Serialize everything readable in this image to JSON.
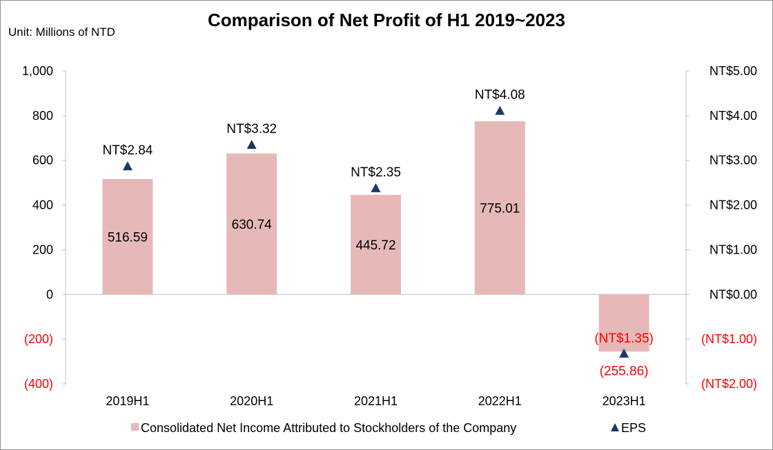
{
  "chart_data": {
    "type": "bar",
    "title": "Comparison of Net Profit of H1 2019~2023",
    "unit_label": "Unit: Millions of NTD",
    "categories": [
      "2019H1",
      "2020H1",
      "2021H1",
      "2022H1",
      "2023H1"
    ],
    "series": [
      {
        "name": "Consolidated Net Income Attributed to Stockholders of the Company",
        "type": "bar",
        "axis": "left",
        "color": "#e6b9b8",
        "values": [
          516.59,
          630.74,
          445.72,
          775.01,
          -255.86
        ],
        "labels": [
          "516.59",
          "630.74",
          "445.72",
          "775.01",
          "(255.86)"
        ]
      },
      {
        "name": "EPS",
        "type": "scatter",
        "marker": "triangle",
        "axis": "right",
        "color": "#1f3864",
        "values": [
          2.84,
          3.32,
          2.35,
          4.08,
          -1.35
        ],
        "labels": [
          "NT$2.84",
          "NT$3.32",
          "NT$2.35",
          "NT$4.08",
          "(NT$1.35)"
        ]
      }
    ],
    "y_left": {
      "range": [
        -400,
        1000
      ],
      "ticks": [
        1000,
        800,
        600,
        400,
        200,
        0,
        -200,
        -400
      ],
      "tick_labels": [
        "1,000",
        "800",
        "600",
        "400",
        "200",
        "0",
        "(200)",
        "(400)"
      ]
    },
    "y_right": {
      "range": [
        -2,
        5
      ],
      "ticks": [
        5,
        4,
        3,
        2,
        1,
        0,
        -1,
        -2
      ],
      "tick_labels": [
        "NT$5.00",
        "NT$4.00",
        "NT$3.00",
        "NT$2.00",
        "NT$1.00",
        "NT$0.00",
        "(NT$1.00)",
        "(NT$2.00)"
      ]
    },
    "negative_color": "#ff0000",
    "grid": false,
    "legend_position": "bottom"
  }
}
